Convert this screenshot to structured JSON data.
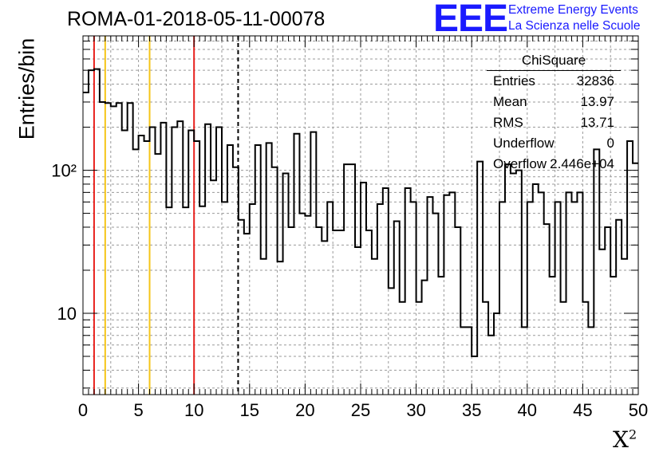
{
  "title": "ROMA-01-2018-05-11-00078",
  "logo": {
    "mark": "EEE",
    "line1": "Extreme Energy Events",
    "line2": "La Scienza nelle Scuole"
  },
  "chart_data": {
    "type": "histogram",
    "xlabel": "X",
    "xlabel_sup": "2",
    "ylabel": "Entries/bin",
    "xlim": [
      0,
      50
    ],
    "ylim": [
      2.7,
      870
    ],
    "yscale": "log",
    "grid": true,
    "bin_width": 0.5,
    "x_ticks": [
      "0",
      "5",
      "10",
      "15",
      "20",
      "25",
      "30",
      "35",
      "40",
      "45",
      "50"
    ],
    "y_ticks": [
      {
        "value": 10,
        "label": "10"
      },
      {
        "value": 100,
        "label": "10²"
      }
    ],
    "values": [
      350,
      500,
      510,
      300,
      295,
      280,
      295,
      190,
      295,
      140,
      175,
      160,
      200,
      130,
      215,
      55,
      200,
      220,
      55,
      190,
      160,
      56,
      210,
      85,
      200,
      60,
      150,
      105,
      45,
      36,
      58,
      150,
      24,
      155,
      105,
      23,
      95,
      40,
      180,
      50,
      48,
      185,
      40,
      32,
      60,
      38,
      38,
      110,
      110,
      29,
      82,
      38,
      24,
      58,
      75,
      15,
      44,
      12,
      75,
      60,
      12,
      17,
      65,
      50,
      18,
      67,
      70,
      40,
      8,
      8,
      5,
      115,
      12,
      7,
      10,
      60,
      110,
      95,
      100,
      8,
      60,
      80,
      70,
      42,
      18,
      60,
      12,
      70,
      60,
      70,
      12,
      8,
      140,
      28,
      40,
      18,
      45,
      24,
      160,
      112
    ],
    "vertical_lines": [
      {
        "x": 1,
        "color": "#e8201c",
        "style": "solid"
      },
      {
        "x": 2,
        "color": "#f5c518",
        "style": "solid"
      },
      {
        "x": 6,
        "color": "#f5c518",
        "style": "solid"
      },
      {
        "x": 10,
        "color": "#e8201c",
        "style": "solid"
      },
      {
        "x": 13.97,
        "color": "#000000",
        "style": "dashed"
      }
    ],
    "stats": {
      "title": "ChiSquare",
      "rows": [
        {
          "key": "Entries",
          "value": "32836"
        },
        {
          "key": "Mean",
          "value": "13.97"
        },
        {
          "key": "RMS",
          "value": "13.71"
        },
        {
          "key": "Underflow",
          "value": "0"
        },
        {
          "key": "Overflow",
          "value": "2.446e+04"
        }
      ]
    }
  }
}
